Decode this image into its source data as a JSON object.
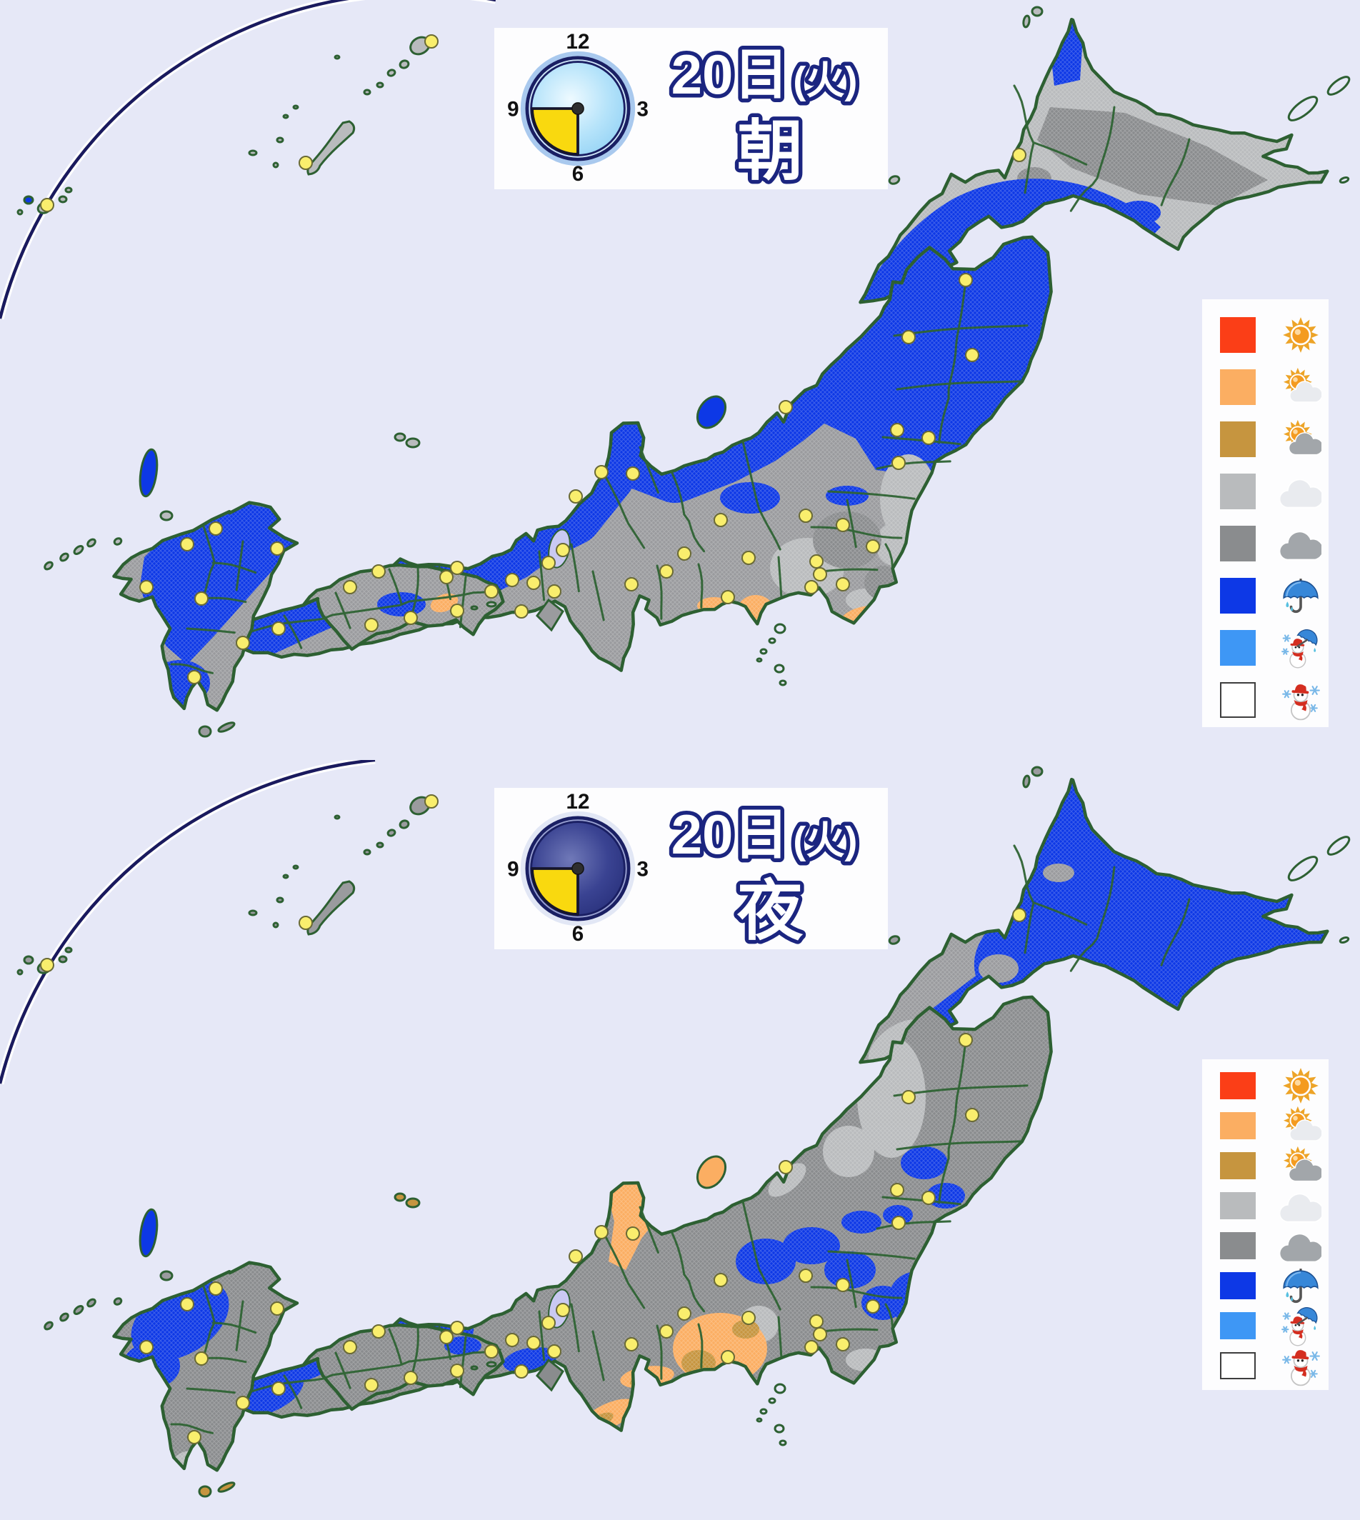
{
  "app": {
    "type": "tv-weather-forecast-map",
    "region": "Japan"
  },
  "colors": {
    "sea": "#e6e8f7",
    "coastline_green": "#2d6032",
    "prefecture_border_green": "#2f6434",
    "panel_box_bg": "#fdfdfe",
    "headline_navy": "#1b2580",
    "city_dot_fill": "#f9ee6d",
    "city_dot_stroke": "#6a6a35",
    "lake": "#c9c9f2",
    "arc_line_navy": "#1a1a5e",
    "arc_line_casing": "#ffffff"
  },
  "weather_colors": {
    "sunny": "#fb3e17",
    "sunny_cloud_light": "#fbae62",
    "sunny_cloud": "#c6953f",
    "cloud_light": "#b9bbbd",
    "cloud": "#9a9b9e",
    "cloud_dark": "#8a8c8e",
    "rain": "#0d38e6",
    "sleet": "#3e97f5",
    "snow": "#ffffff"
  },
  "clock_numerals": [
    "12",
    "3",
    "6",
    "9"
  ],
  "legend": {
    "rows": [
      {
        "weather": "sunny",
        "icon": "sun-icon"
      },
      {
        "weather": "sunny_cloud_light",
        "icon": "sun-behind-light-cloud-icon"
      },
      {
        "weather": "sunny_cloud",
        "icon": "sun-behind-cloud-icon"
      },
      {
        "weather": "cloud_light",
        "icon": "light-cloud-icon"
      },
      {
        "weather": "cloud_dark",
        "icon": "dark-cloud-icon"
      },
      {
        "weather": "rain",
        "icon": "umbrella-rain-icon"
      },
      {
        "weather": "sleet",
        "icon": "snowman-umbrella-sleet-icon"
      },
      {
        "weather": "snow",
        "icon": "snowman-snow-icon"
      }
    ]
  },
  "panels": [
    {
      "id": "morning",
      "date_label": "20日",
      "weekday_label": "(火)",
      "period_label": "朝",
      "clock": {
        "style": "morning",
        "face_color": "#a6ddf8",
        "wedge_color": "#f9d90f",
        "highlighted_hours": "6-9"
      },
      "regions": {
        "hokkaido": "cloud_light",
        "honshu": "cloud",
        "shikoku": "cloud",
        "kyushu": "cloud",
        "sado": "rain",
        "tsushima": "rain",
        "oki": "cloud_light",
        "awaji": "cloud",
        "okinawa": "cloud_light",
        "amami": "cloud_light",
        "sakishima": "cloud_light",
        "sakishima_west": "rain",
        "minor": "cloud_light",
        "yakutane": "cloud"
      },
      "patches": [
        {
          "area": "hk_dark_mid",
          "weather": "cloud_dark"
        },
        {
          "area": "hk_dark_blob",
          "weather": "cloud_dark"
        },
        {
          "area": "hk_blue_sw",
          "weather": "rain"
        },
        {
          "area": "hk_blue_tip",
          "weather": "rain"
        },
        {
          "area": "hk_blue_s1",
          "weather": "rain"
        },
        {
          "area": "hk_blue_s2",
          "weather": "rain"
        },
        {
          "area": "tohoku_block",
          "weather": "rain"
        },
        {
          "area": "japan_sea_band",
          "weather": "rain"
        },
        {
          "area": "nagano_north",
          "weather": "rain"
        },
        {
          "area": "nikko",
          "weather": "rain"
        },
        {
          "area": "fukushima_coast",
          "weather": "cloud_light"
        },
        {
          "area": "ibaraki_coast",
          "weather": "cloud_light"
        },
        {
          "area": "kanto_west",
          "weather": "cloud_light"
        },
        {
          "area": "boso_mid",
          "weather": "cloud_light"
        },
        {
          "area": "kanto_dark",
          "weather": "cloud_dark"
        },
        {
          "area": "chiba_dark",
          "weather": "cloud_dark"
        },
        {
          "area": "izu_peninsula",
          "weather": "sunny_cloud_light"
        },
        {
          "area": "boso_tip",
          "weather": "sunny_cloud_light"
        },
        {
          "area": "enshu_coast",
          "weather": "sunny_cloud_light"
        },
        {
          "area": "shikoku_mid",
          "weather": "rain"
        },
        {
          "area": "tokushima_coast",
          "weather": "sunny_cloud_light"
        },
        {
          "area": "kyushu_northwest",
          "weather": "rain"
        },
        {
          "area": "satsuma",
          "weather": "rain"
        }
      ]
    },
    {
      "id": "night",
      "date_label": "20日",
      "weekday_label": "(火)",
      "period_label": "夜",
      "clock": {
        "style": "night",
        "face_color": "#3a4392",
        "wedge_color": "#f9d90f",
        "highlighted_hours": "6-9"
      },
      "regions": {
        "hokkaido": "rain",
        "honshu": "cloud_dark",
        "shikoku": "cloud_dark",
        "kyushu": "cloud_dark",
        "sado": "sunny_cloud_light",
        "tsushima": "rain",
        "oki": "sunny_cloud",
        "awaji": "cloud_dark",
        "okinawa": "cloud",
        "amami": "cloud",
        "sakishima": "cloud",
        "sakishima_west": "cloud",
        "minor": "cloud",
        "yakutane": "sunny_cloud"
      },
      "patches": [
        {
          "area": "hk_gray_west",
          "weather": "cloud"
        },
        {
          "area": "hk_lgray_oshima",
          "weather": "cloud_light"
        },
        {
          "area": "hk_gray_tip",
          "weather": "cloud"
        },
        {
          "area": "hk_gray_south",
          "weather": "cloud"
        },
        {
          "area": "hk_gray_center",
          "weather": "cloud"
        },
        {
          "area": "akita_coast",
          "weather": "cloud_light"
        },
        {
          "area": "shonai",
          "weather": "cloud_light"
        },
        {
          "area": "niigata_coast",
          "weather": "cloud_light"
        },
        {
          "area": "kofu_basin",
          "weather": "cloud_light"
        },
        {
          "area": "boso_mid",
          "weather": "cloud_light"
        },
        {
          "area": "noto_mid",
          "weather": "cloud_light"
        },
        {
          "area": "satsuma_lgray",
          "weather": "cloud_light"
        },
        {
          "area": "miyagi_blue",
          "weather": "rain"
        },
        {
          "area": "sanriku_blue",
          "weather": "rain"
        },
        {
          "area": "yamagata_blue",
          "weather": "rain"
        },
        {
          "area": "aizu_blue",
          "weather": "rain"
        },
        {
          "area": "nagano_blue1",
          "weather": "rain"
        },
        {
          "area": "nagano_blue2",
          "weather": "rain"
        },
        {
          "area": "kanto_north_blue1",
          "weather": "rain"
        },
        {
          "area": "kanto_north_blue2",
          "weather": "rain"
        },
        {
          "area": "kanto_ne_blue",
          "weather": "rain"
        },
        {
          "area": "osaka_blue",
          "weather": "rain"
        },
        {
          "area": "shikoku_ne_blue",
          "weather": "rain"
        },
        {
          "area": "sanin_strip",
          "weather": "rain"
        },
        {
          "area": "yamaguchi_blue",
          "weather": "rain"
        },
        {
          "area": "kyushu_nw_blue1",
          "weather": "rain"
        },
        {
          "area": "kyushu_nw_blue2",
          "weather": "rain"
        },
        {
          "area": "noto_orange",
          "weather": "sunny_cloud_light"
        },
        {
          "area": "shizuoka_orange",
          "weather": "sunny_cloud_light"
        },
        {
          "area": "aichi_orange",
          "weather": "sunny_cloud_light"
        },
        {
          "area": "kii_orange",
          "weather": "sunny_cloud_light"
        },
        {
          "area": "shizuoka_tan1",
          "weather": "sunny_cloud"
        },
        {
          "area": "shizuoka_tan2",
          "weather": "sunny_cloud"
        },
        {
          "area": "aichi_tan",
          "weather": "sunny_cloud"
        },
        {
          "area": "kii_tan",
          "weather": "sunny_cloud"
        }
      ]
    }
  ]
}
